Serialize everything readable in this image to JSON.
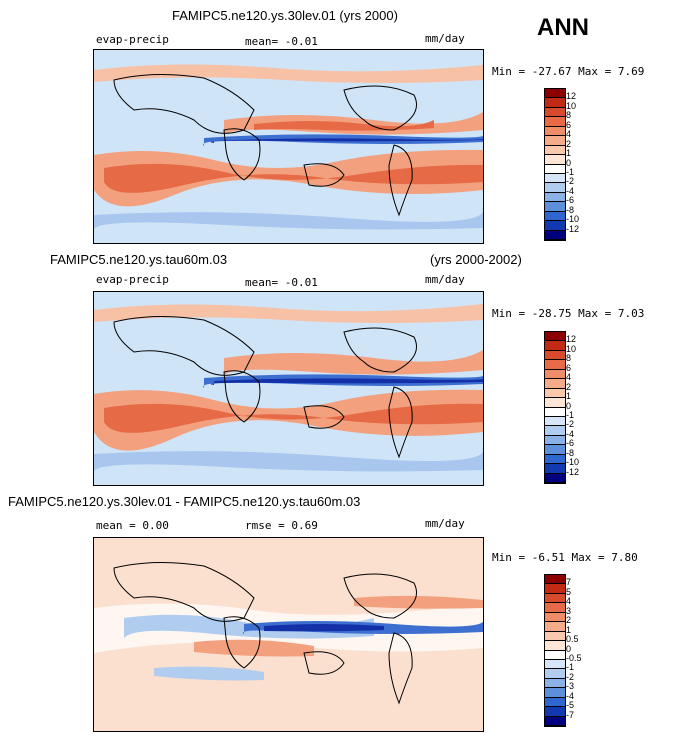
{
  "season": "ANN",
  "panels": [
    {
      "case_title": "FAMIPC5.ne120.ys.30lev.01 (yrs 2000)",
      "case_years": "",
      "variable": "evap-precip",
      "mean_text": "mean=   -0.01",
      "rmse_text": "",
      "units": "mm/day",
      "minmax_text": "Min = -27.67  Max =    7.69",
      "colorbar_labels": [
        "12",
        "10",
        "8",
        "6",
        "4",
        "2",
        "1",
        "0",
        "-1",
        "-2",
        "-4",
        "-6",
        "-8",
        "-10",
        "-12"
      ],
      "colorbar_colors": [
        "#8b0000",
        "#c22a16",
        "#d84a2e",
        "#e96a48",
        "#f08c68",
        "#f6ab8a",
        "#fac8ad",
        "#fde6d6",
        "#ffffff",
        "#d6e6f8",
        "#b0cdf0",
        "#8ab2e6",
        "#5d8fdb",
        "#3066cf",
        "#1239b0",
        "#00007f"
      ]
    },
    {
      "case_title": "FAMIPC5.ne120.ys.tau60m.03",
      "case_years": "(yrs 2000-2002)",
      "variable": "evap-precip",
      "mean_text": "mean=   -0.01",
      "rmse_text": "",
      "units": "mm/day",
      "minmax_text": "Min = -28.75  Max =    7.03",
      "colorbar_labels": [
        "12",
        "10",
        "8",
        "6",
        "4",
        "2",
        "1",
        "0",
        "-1",
        "-2",
        "-4",
        "-6",
        "-8",
        "-10",
        "-12"
      ],
      "colorbar_colors": [
        "#8b0000",
        "#c22a16",
        "#d84a2e",
        "#e96a48",
        "#f08c68",
        "#f6ab8a",
        "#fac8ad",
        "#fde6d6",
        "#ffffff",
        "#d6e6f8",
        "#b0cdf0",
        "#8ab2e6",
        "#5d8fdb",
        "#3066cf",
        "#1239b0",
        "#00007f"
      ]
    },
    {
      "case_title": "FAMIPC5.ne120.ys.30lev.01 - FAMIPC5.ne120.ys.tau60m.03",
      "case_years": "",
      "variable": "",
      "mean_text": "mean =    0.00",
      "rmse_text": "rmse =    0.69",
      "units": "mm/day",
      "minmax_text": "Min =  -6.51  Max =    7.80",
      "colorbar_labels": [
        "7",
        "5",
        "4",
        "3",
        "2",
        "1",
        "0.5",
        "0",
        "-0.5",
        "-1",
        "-2",
        "-3",
        "-4",
        "-5",
        "-7"
      ],
      "colorbar_colors": [
        "#8b0000",
        "#c22a16",
        "#d84a2e",
        "#e96a48",
        "#f08c68",
        "#f6ab8a",
        "#fac8ad",
        "#fde6d6",
        "#ffffff",
        "#d6e6f8",
        "#b0cdf0",
        "#8ab2e6",
        "#5d8fdb",
        "#3066cf",
        "#1239b0",
        "#00007f"
      ]
    }
  ]
}
